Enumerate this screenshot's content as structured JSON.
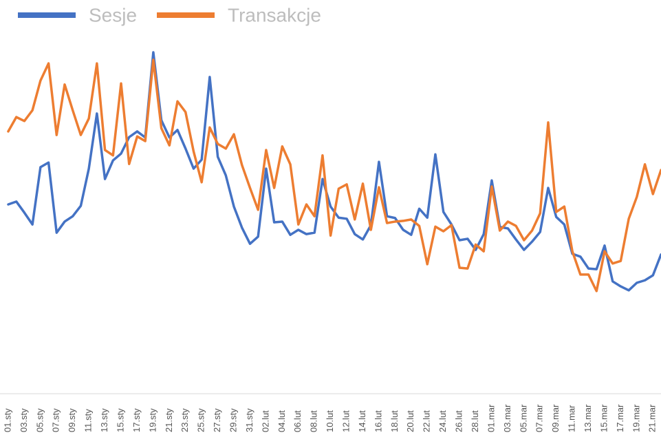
{
  "chart_data": {
    "type": "line",
    "categories": [
      "01.sty",
      null,
      "03.sty",
      null,
      "05.sty",
      null,
      "07.sty",
      null,
      "09.sty",
      null,
      "11.sty",
      null,
      "13.sty",
      null,
      "15.sty",
      null,
      "17.sty",
      null,
      "19.sty",
      null,
      "21.sty",
      null,
      "23.sty",
      null,
      "25.sty",
      null,
      "27.sty",
      null,
      "29.sty",
      null,
      "31.sty",
      null,
      "02.lut",
      null,
      "04.lut",
      null,
      "06.lut",
      null,
      "08.lut",
      null,
      "10.lut",
      null,
      "12.lut",
      null,
      "14.lut",
      null,
      "16.lut",
      null,
      "18.lut",
      null,
      "20.lut",
      null,
      "22.lut",
      null,
      "24.lut",
      null,
      "26.lut",
      null,
      "28.lut",
      null,
      "01.mar",
      null,
      "03.mar",
      null,
      "05.mar",
      null,
      "07.mar",
      null,
      "09.mar",
      null,
      "11.mar",
      null,
      "13.mar",
      null,
      "15.mar",
      null,
      "17.mar",
      null,
      "19.mar",
      null,
      "21.mar",
      null
    ],
    "series": [
      {
        "name": "Sesje",
        "color": "#4472c4",
        "values": [
          52.5,
          53.3,
          50.2,
          46.9,
          62.9,
          64.2,
          44.6,
          47.7,
          49.2,
          52.1,
          62.5,
          77.9,
          59.6,
          64.8,
          66.7,
          71.3,
          72.9,
          71.2,
          95,
          76,
          71.2,
          73.3,
          68.1,
          62.5,
          65,
          88.1,
          65.8,
          60.6,
          51.9,
          46,
          41.5,
          43.5,
          62.5,
          47.5,
          47.7,
          44,
          45.4,
          44.2,
          44.6,
          59.6,
          51.9,
          48.8,
          48.5,
          44.2,
          42.7,
          46.7,
          64.4,
          49.2,
          48.7,
          45.4,
          44,
          51.3,
          48.8,
          66.5,
          50.4,
          46.9,
          42.5,
          42.9,
          39.8,
          44.2,
          59.2,
          46.2,
          45.8,
          42.7,
          39.8,
          42.1,
          44.8,
          57.1,
          49,
          46.9,
          38.7,
          37.9,
          34.6,
          34.4,
          41,
          31,
          29.6,
          28.5,
          30.6,
          31.3,
          32.7,
          38.5
        ]
      },
      {
        "name": "Transakcje",
        "color": "#ed7d31",
        "values": [
          72.9,
          76.9,
          75.8,
          78.8,
          87.1,
          91.9,
          71.9,
          86,
          78.8,
          71.9,
          76.5,
          91.9,
          67.7,
          66.2,
          86.3,
          63.8,
          71.5,
          70.2,
          92.9,
          73.8,
          69,
          81.3,
          78.3,
          67.3,
          58.7,
          74,
          69.4,
          68.1,
          72.1,
          63.5,
          57.1,
          51,
          67.7,
          57.1,
          68.7,
          63.7,
          46.9,
          52.5,
          49.2,
          66.2,
          43.8,
          56.9,
          58.1,
          48.3,
          58.3,
          45.4,
          57.3,
          47.3,
          47.7,
          47.9,
          48.3,
          46.5,
          35.8,
          46.3,
          45,
          46.7,
          34.8,
          34.6,
          41.3,
          39.4,
          57.5,
          45.2,
          47.7,
          46.5,
          42.5,
          45.2,
          50,
          75.4,
          50.4,
          51.9,
          39.4,
          32.9,
          32.9,
          28.3,
          39.4,
          36,
          36.7,
          48.5,
          54.6,
          63.7,
          55.4,
          62.1
        ]
      }
    ],
    "ylim": [
      0,
      100
    ],
    "grid": false,
    "legend": "top"
  }
}
